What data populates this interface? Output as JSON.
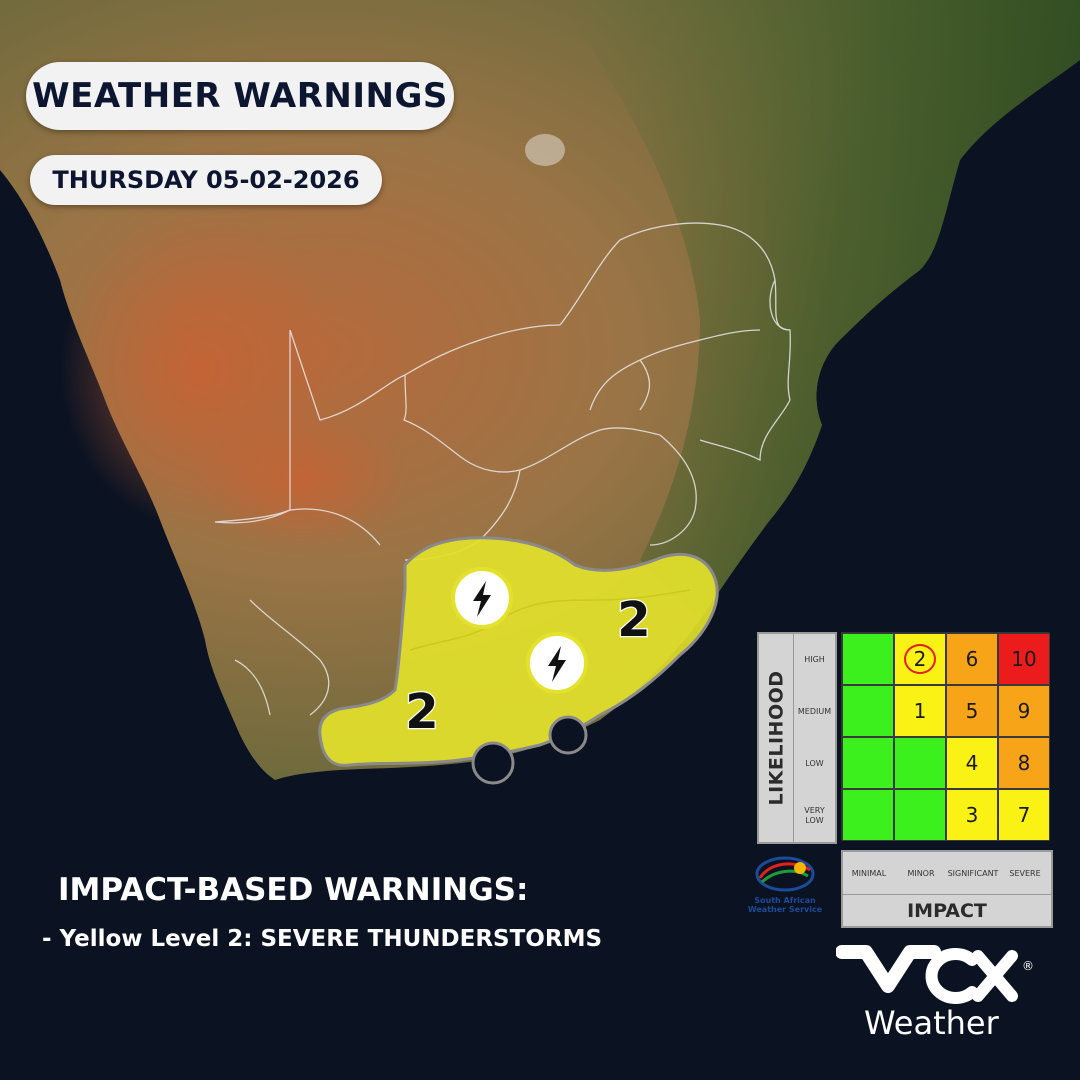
{
  "header": {
    "title": "WEATHER WARNINGS",
    "date": "THURSDAY 05-02-2026"
  },
  "warnings": {
    "heading": "IMPACT-BASED WARNINGS:",
    "items": [
      {
        "dash": "-",
        "text": "Yellow Level 2: SEVERE THUNDERSTORMS"
      }
    ],
    "zone_levels": [
      "2",
      "2"
    ],
    "zone_icon": "lightning-bolt-icon",
    "zone_color": "#e3e12b"
  },
  "legend": {
    "likelihood_title": "LIKELIHOOD",
    "likelihood_rows": [
      "HIGH",
      "MEDIUM",
      "LOW",
      "VERY LOW"
    ],
    "impact_title": "IMPACT",
    "impact_cols": [
      "MINIMAL",
      "MINOR",
      "SIGNIFICANT",
      "SEVERE"
    ],
    "matrix": [
      [
        {
          "v": "",
          "c": "green"
        },
        {
          "v": "2",
          "c": "yellow",
          "circled": true
        },
        {
          "v": "6",
          "c": "orange"
        },
        {
          "v": "10",
          "c": "red"
        }
      ],
      [
        {
          "v": "",
          "c": "green"
        },
        {
          "v": "1",
          "c": "yellow"
        },
        {
          "v": "5",
          "c": "orange"
        },
        {
          "v": "9",
          "c": "orange"
        }
      ],
      [
        {
          "v": "",
          "c": "green"
        },
        {
          "v": "",
          "c": "green"
        },
        {
          "v": "4",
          "c": "yellow"
        },
        {
          "v": "8",
          "c": "orange"
        }
      ],
      [
        {
          "v": "",
          "c": "green"
        },
        {
          "v": "",
          "c": "green"
        },
        {
          "v": "3",
          "c": "yellow"
        },
        {
          "v": "7",
          "c": "yellow"
        }
      ]
    ],
    "colors": {
      "green": "#3cf01e",
      "yellow": "#fbf215",
      "orange": "#f7a418",
      "red": "#ec1c1c"
    }
  },
  "branding": {
    "saws_label": "South African Weather Service",
    "vox_logo": "VOX",
    "vox_sub": "Weather",
    "registered": "®"
  }
}
